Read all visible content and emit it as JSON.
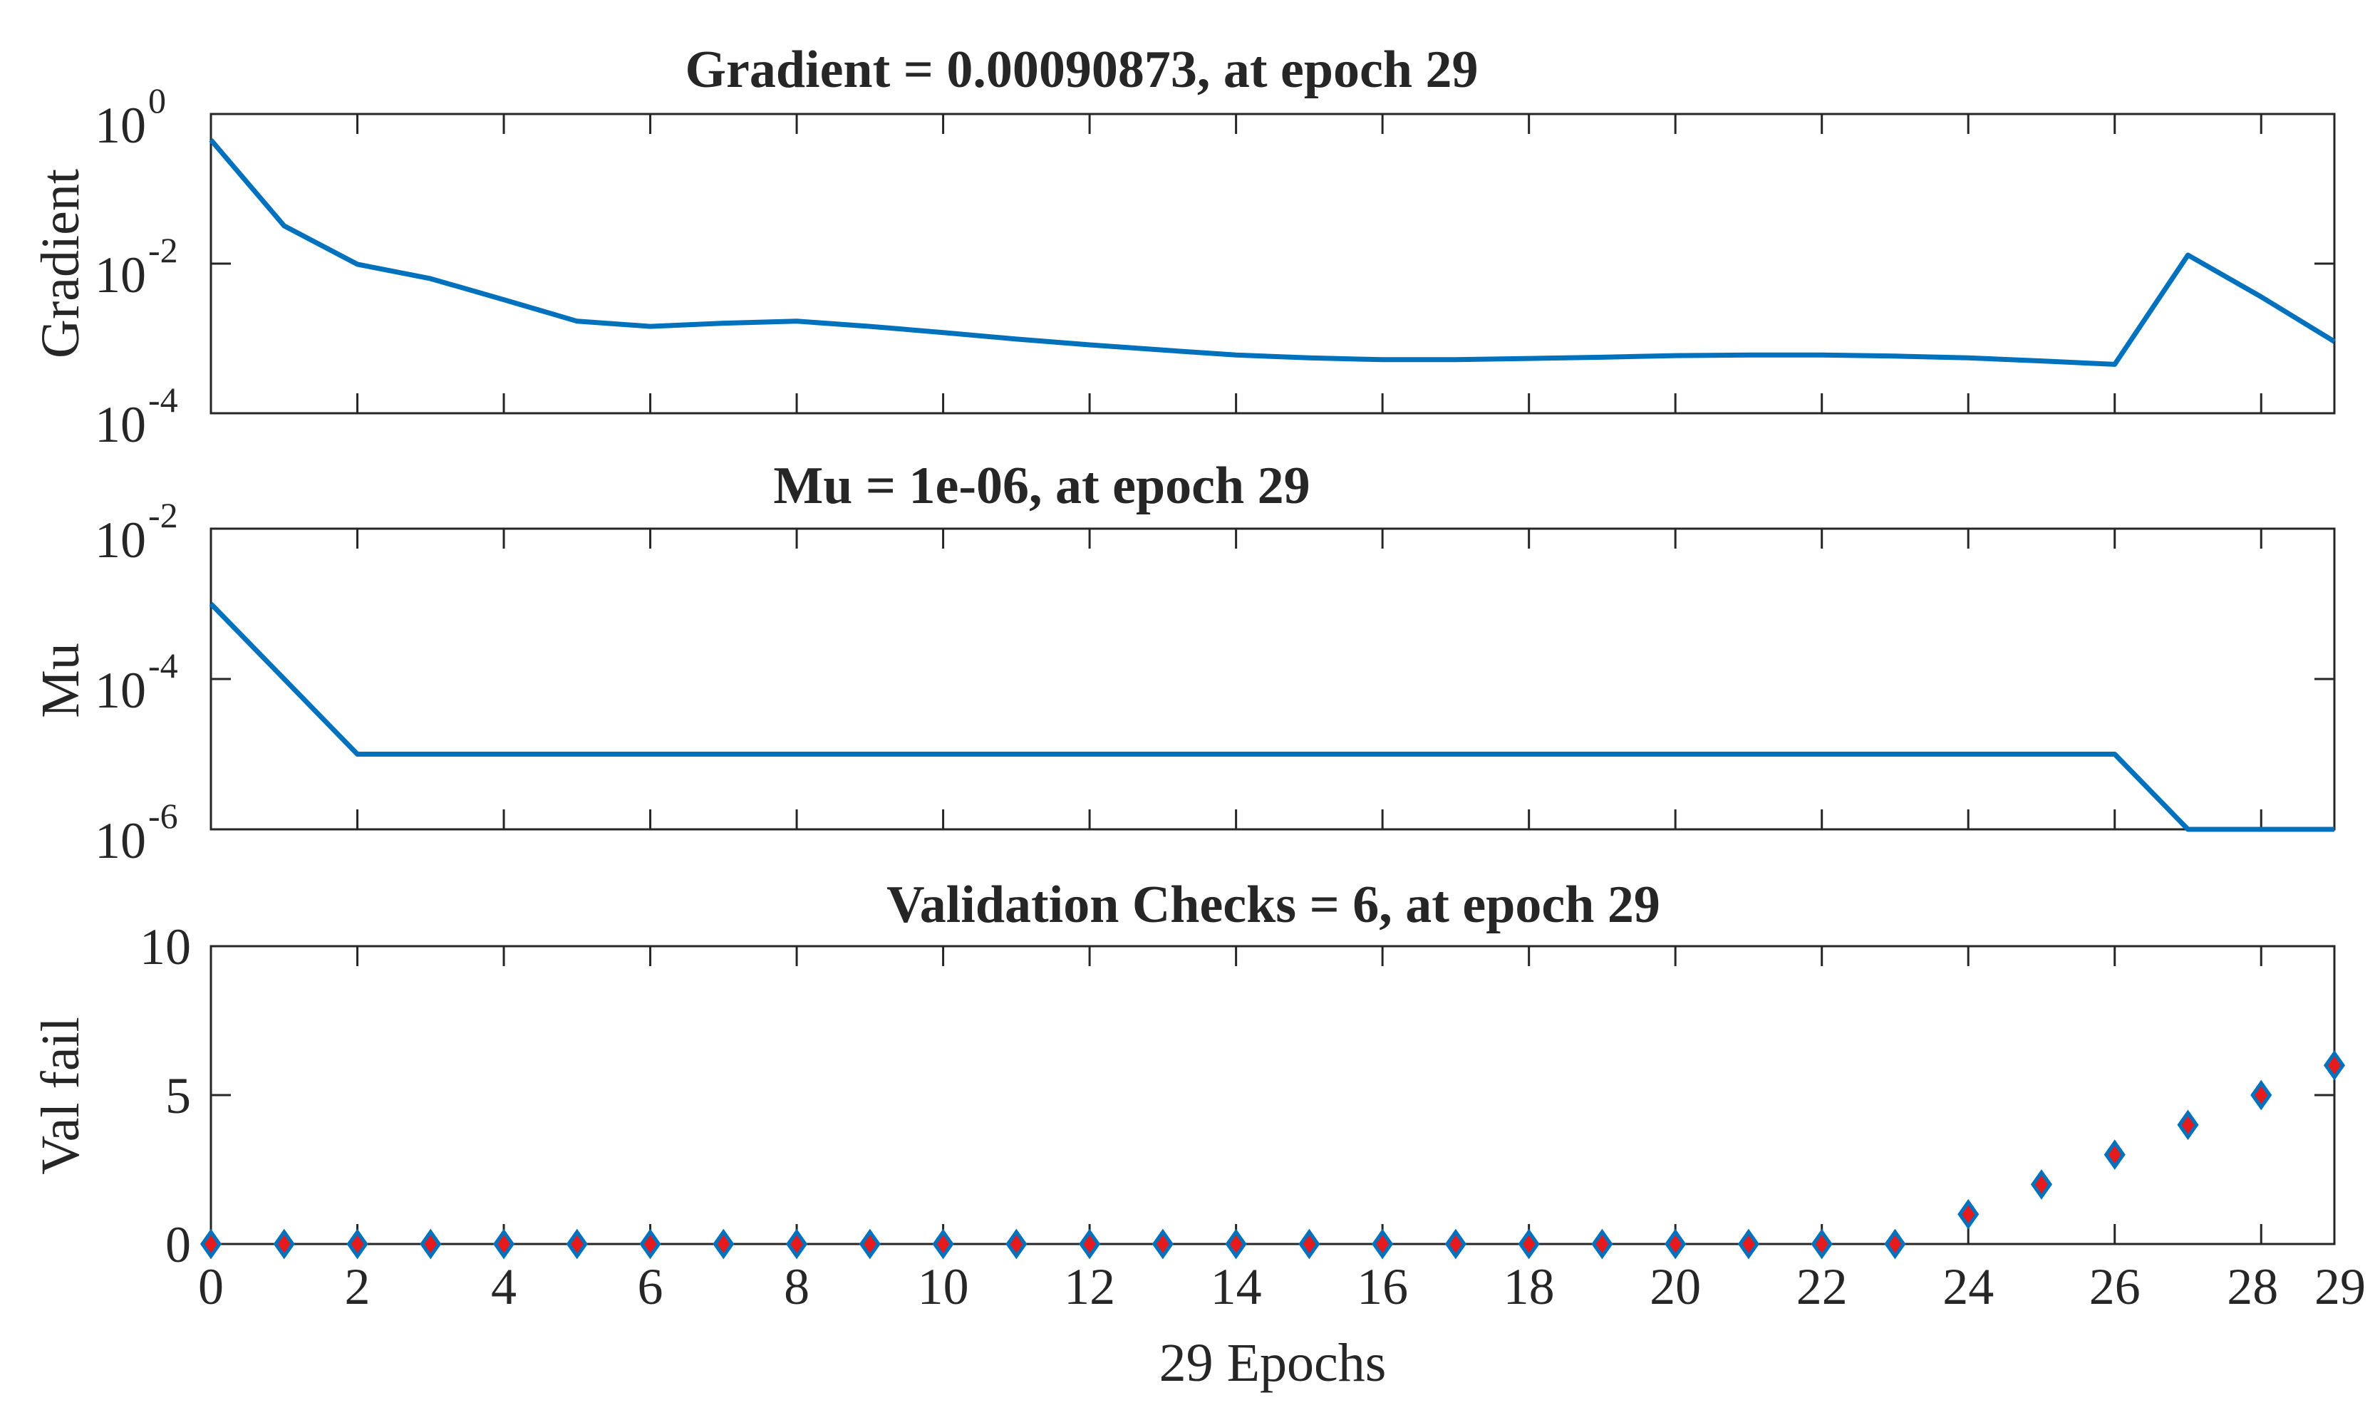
{
  "chart_data": [
    {
      "id": "gradient",
      "type": "line",
      "title": "Gradient = 0.00090873, at epoch 29",
      "ylabel": "Gradient",
      "yscale": "log",
      "ylim_exp": [
        -4,
        0
      ],
      "ytick_exps": [
        "-4",
        "-2",
        "0"
      ],
      "xlim": [
        0,
        29
      ],
      "color": "#0072BD",
      "x": [
        0,
        1,
        2,
        3,
        4,
        5,
        6,
        7,
        8,
        9,
        10,
        11,
        12,
        13,
        14,
        15,
        16,
        17,
        18,
        19,
        20,
        21,
        22,
        23,
        24,
        25,
        26,
        27,
        28,
        29
      ],
      "values": [
        0.45,
        0.032,
        0.0098,
        0.0063,
        0.0033,
        0.0017,
        0.00145,
        0.0016,
        0.0017,
        0.00145,
        0.0012,
        0.00098,
        0.00082,
        0.0007,
        0.0006,
        0.00055,
        0.00052,
        0.00052,
        0.00054,
        0.00056,
        0.00059,
        0.0006,
        0.0006,
        0.00058,
        0.00055,
        0.0005,
        0.00045,
        0.013,
        0.0036,
        0.00090873
      ]
    },
    {
      "id": "mu",
      "type": "line",
      "title": "Mu = 1e-06, at epoch 29",
      "ylabel": "Mu",
      "yscale": "log",
      "ylim_exp": [
        -6,
        -2
      ],
      "ytick_exps": [
        "-6",
        "-4",
        "-2"
      ],
      "xlim": [
        0,
        29
      ],
      "color": "#0072BD",
      "x": [
        0,
        1,
        2,
        3,
        4,
        5,
        6,
        7,
        8,
        9,
        10,
        11,
        12,
        13,
        14,
        15,
        16,
        17,
        18,
        19,
        20,
        21,
        22,
        23,
        24,
        25,
        26,
        27,
        28,
        29
      ],
      "values": [
        0.001,
        0.0001,
        1e-05,
        1e-05,
        1e-05,
        1e-05,
        1e-05,
        1e-05,
        1e-05,
        1e-05,
        1e-05,
        1e-05,
        1e-05,
        1e-05,
        1e-05,
        1e-05,
        1e-05,
        1e-05,
        1e-05,
        1e-05,
        1e-05,
        1e-05,
        1e-05,
        1e-05,
        1e-05,
        1e-05,
        1e-05,
        1e-06,
        1e-06,
        1e-06
      ]
    },
    {
      "id": "valfail",
      "type": "scatter",
      "title": "Validation Checks = 6, at epoch 29",
      "ylabel": "Val fail",
      "xlabel": "29 Epochs",
      "ylim": [
        0,
        10
      ],
      "yticks": [
        "0",
        "5",
        "10"
      ],
      "xlim": [
        0,
        29
      ],
      "xticks": [
        "0",
        "2",
        "4",
        "6",
        "8",
        "10",
        "12",
        "14",
        "16",
        "18",
        "20",
        "22",
        "24",
        "26",
        "28",
        "29"
      ],
      "marker": "diamond",
      "marker_edge_color": "#0072BD",
      "marker_face_color": "#E41A1C",
      "x": [
        0,
        1,
        2,
        3,
        4,
        5,
        6,
        7,
        8,
        9,
        10,
        11,
        12,
        13,
        14,
        15,
        16,
        17,
        18,
        19,
        20,
        21,
        22,
        23,
        24,
        25,
        26,
        27,
        28,
        29
      ],
      "values": [
        0,
        0,
        0,
        0,
        0,
        0,
        0,
        0,
        0,
        0,
        0,
        0,
        0,
        0,
        0,
        0,
        0,
        0,
        0,
        0,
        0,
        0,
        0,
        0,
        1,
        2,
        3,
        4,
        5,
        6
      ]
    }
  ]
}
